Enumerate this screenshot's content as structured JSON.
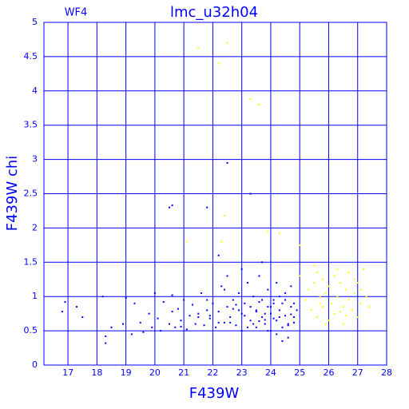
{
  "chart_data": {
    "type": "scatter",
    "title": "lmc_u32h04",
    "subtitle": "WF4",
    "x_label": "F439W",
    "y_label": "F439W chi",
    "xlim": [
      16.17,
      28
    ],
    "ylim": [
      0,
      5
    ],
    "xticks": [
      17,
      18,
      19,
      20,
      21,
      22,
      23,
      24,
      25,
      26,
      27,
      28
    ],
    "yticks": [
      0,
      0.5,
      1,
      1.5,
      2,
      2.5,
      3,
      3.5,
      4,
      4.5,
      5
    ],
    "grid": true,
    "axis_color": "#0000ff",
    "series": [
      {
        "color": "#0000ff",
        "x": [
          16.8,
          16.9,
          17.3,
          17.5,
          18.2,
          18.3,
          18.3,
          18.5,
          18.9,
          19.0,
          19.2,
          19.3,
          19.5,
          19.6,
          19.8,
          19.9,
          20.0,
          20.1,
          20.2,
          20.3,
          20.5,
          20.6,
          20.6,
          20.7,
          20.8,
          20.9,
          21.0,
          21.1,
          21.2,
          21.3,
          21.4,
          21.5,
          21.6,
          21.7,
          21.8,
          21.8,
          21.9,
          22.0,
          22.1,
          22.2,
          22.3,
          22.4,
          22.5,
          22.5,
          22.6,
          22.7,
          22.8,
          22.9,
          23.0,
          23.0,
          23.1,
          23.2,
          23.3,
          23.3,
          23.4,
          23.5,
          23.5,
          23.6,
          23.7,
          23.7,
          23.8,
          23.9,
          23.9,
          24.0,
          24.0,
          24.1,
          24.2,
          24.2,
          24.3,
          24.4,
          24.4,
          24.5,
          24.5,
          24.6,
          24.7,
          24.7,
          24.8,
          24.9,
          22.6,
          22.8,
          23.1,
          23.4,
          23.6,
          23.8,
          24.1,
          24.3,
          24.6,
          24.8,
          22.9,
          23.2,
          23.5,
          23.8,
          24.0,
          24.3,
          24.5,
          24.8,
          22.4,
          23.0,
          23.7,
          24.2,
          24.6,
          21.9,
          22.2,
          23.3,
          23.9,
          24.4,
          20.5,
          20.6,
          21.8,
          22.5,
          23.3,
          22.7,
          23.6,
          24.1,
          24.7,
          22.2,
          21.5,
          20.9
        ],
        "values": [
          0.78,
          0.92,
          0.85,
          0.7,
          1.0,
          0.32,
          0.42,
          0.55,
          0.6,
          0.98,
          0.45,
          0.9,
          0.62,
          0.48,
          0.75,
          0.55,
          1.05,
          0.68,
          0.5,
          0.92,
          0.6,
          0.78,
          1.02,
          0.55,
          0.82,
          0.65,
          0.95,
          0.52,
          0.72,
          0.88,
          0.6,
          0.75,
          1.05,
          0.58,
          0.8,
          0.95,
          0.68,
          0.9,
          0.55,
          0.78,
          1.15,
          0.62,
          0.85,
          1.3,
          0.7,
          0.95,
          0.58,
          1.05,
          0.75,
          0.5,
          0.9,
          1.2,
          0.65,
          0.85,
          1.0,
          0.55,
          0.8,
          1.3,
          0.7,
          0.95,
          0.6,
          0.85,
          1.1,
          0.5,
          0.75,
          0.95,
          0.65,
          1.2,
          0.8,
          0.55,
          0.9,
          0.72,
          1.05,
          0.6,
          0.85,
          1.15,
          0.7,
          0.8,
          0.62,
          0.88,
          0.72,
          0.6,
          0.92,
          0.75,
          0.68,
          1.0,
          0.58,
          0.9,
          0.8,
          0.55,
          0.78,
          0.66,
          0.85,
          0.7,
          0.95,
          0.62,
          1.1,
          1.4,
          1.5,
          0.45,
          0.4,
          0.72,
          1.6,
          0.85,
          0.5,
          0.35,
          2.3,
          2.33,
          2.3,
          2.95,
          2.5,
          0.82,
          0.64,
          0.9,
          0.74,
          0.62,
          0.7,
          0.56
        ]
      },
      {
        "color": "#ffff00",
        "x": [
          25.0,
          25.2,
          25.3,
          25.4,
          25.5,
          25.6,
          25.6,
          25.7,
          25.8,
          25.8,
          25.9,
          26.0,
          26.0,
          26.1,
          26.2,
          26.2,
          26.3,
          26.4,
          26.5,
          26.5,
          26.6,
          26.7,
          26.7,
          26.8,
          26.9,
          27.0,
          27.0,
          27.1,
          27.2,
          27.3,
          27.4,
          25.5,
          25.9,
          26.3,
          26.6,
          27.1,
          25.7,
          26.4,
          26.9,
          21.5,
          22.2,
          22.5,
          23.3,
          23.6,
          22.3,
          21.1,
          23.9,
          24.3,
          25.0,
          22.4
        ],
        "values": [
          1.3,
          0.95,
          1.1,
          0.8,
          1.2,
          0.7,
          1.35,
          1.0,
          0.85,
          1.25,
          1.05,
          0.65,
          1.15,
          0.9,
          1.3,
          0.75,
          1.0,
          1.2,
          0.85,
          0.6,
          1.1,
          0.95,
          1.35,
          0.8,
          1.05,
          0.7,
          1.2,
          0.9,
          1.4,
          1.0,
          0.85,
          1.45,
          0.6,
          1.4,
          0.72,
          1.1,
          0.9,
          0.78,
          1.25,
          4.62,
          4.4,
          4.7,
          3.88,
          3.8,
          1.8,
          1.8,
          1.95,
          1.92,
          1.75,
          2.18
        ]
      }
    ]
  }
}
